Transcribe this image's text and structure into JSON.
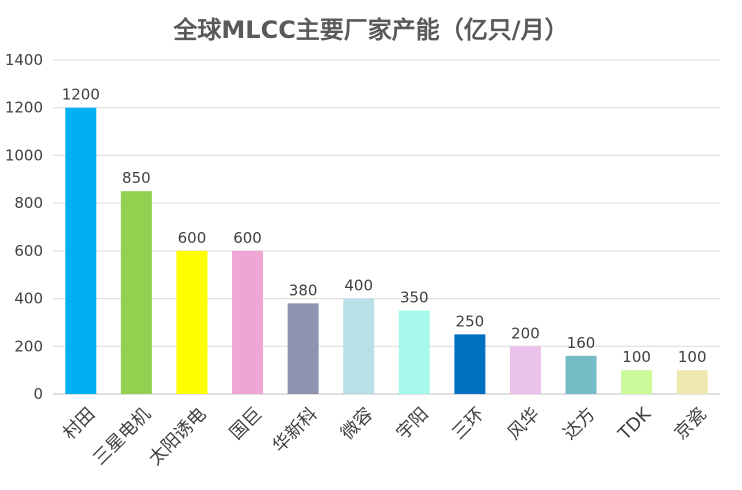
{
  "chart_data": {
    "type": "bar",
    "title": "全球MLCC主要厂家产能（亿只/月）",
    "xlabel": "",
    "ylabel": "",
    "ylim": [
      0,
      1400
    ],
    "yticks": [
      0,
      200,
      400,
      600,
      800,
      1000,
      1200,
      1400
    ],
    "grid": true,
    "legend": "none",
    "categories": [
      "村田",
      "三星电机",
      "太阳诱电",
      "国巨",
      "华新科",
      "微容",
      "宇阳",
      "三环",
      "风华",
      "达方",
      "TDK",
      "京瓷"
    ],
    "values": [
      1200,
      850,
      600,
      600,
      380,
      400,
      350,
      250,
      200,
      160,
      100,
      100
    ],
    "colors": [
      "#00B0F0",
      "#92D050",
      "#FFFF00",
      "#EEA6D4",
      "#8E94B0",
      "#B9E0E6",
      "#A6F8EA",
      "#0070C0",
      "#EBC3EA",
      "#74BCC6",
      "#CCF99A",
      "#EFE6B0"
    ]
  }
}
